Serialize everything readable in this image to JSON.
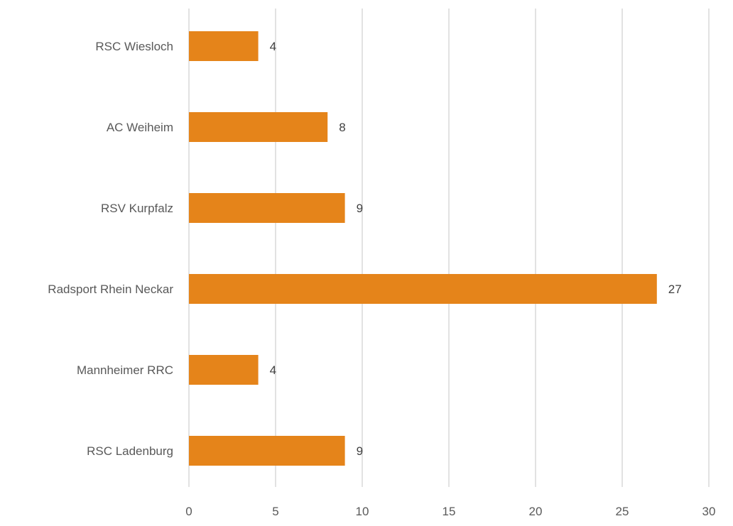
{
  "chart_data": {
    "type": "bar",
    "orientation": "horizontal",
    "categories": [
      "RSC Wiesloch",
      "AC Weiheim",
      "RSV Kurpfalz",
      "Radsport Rhein Neckar",
      "Mannheimer RRC",
      "RSC Ladenburg"
    ],
    "values": [
      4,
      8,
      9,
      27,
      4,
      9
    ],
    "title": "",
    "xlabel": "",
    "ylabel": "",
    "xlim": [
      0,
      30
    ],
    "x_ticks": [
      "0",
      "5",
      "10",
      "15",
      "20",
      "25",
      "30"
    ],
    "grid": "vertical",
    "legend": "none",
    "data_labels": true,
    "colors": {
      "bar": "#E5841A",
      "grid": "#D9D9D9",
      "text": "#595959",
      "label_text": "#404040"
    }
  }
}
